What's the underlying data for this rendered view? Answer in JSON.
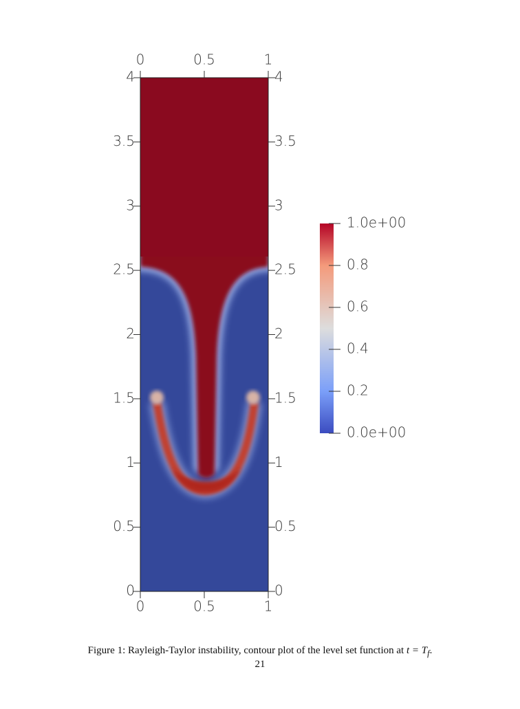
{
  "figure": {
    "xlim": [
      0,
      1
    ],
    "xticks": [
      0,
      0.5,
      1
    ],
    "ylim": [
      0,
      4
    ],
    "yticks": [
      0,
      0.5,
      1,
      1.5,
      2,
      2.5,
      3,
      3.5,
      4
    ],
    "colorbar": {
      "lim": [
        0,
        1
      ],
      "ticks": [
        {
          "value": 1,
          "label": "1.0e+00"
        },
        0.8,
        0.6,
        0.4,
        0.2,
        {
          "value": 0,
          "label": "0.0e+00"
        }
      ]
    }
  },
  "caption": {
    "prefix": "Figure 1:",
    "text": "Rayleigh-Taylor instability, contour plot of the level set function at",
    "math": "t = T",
    "subscript": "f",
    "end": "."
  },
  "page_number": "21"
}
